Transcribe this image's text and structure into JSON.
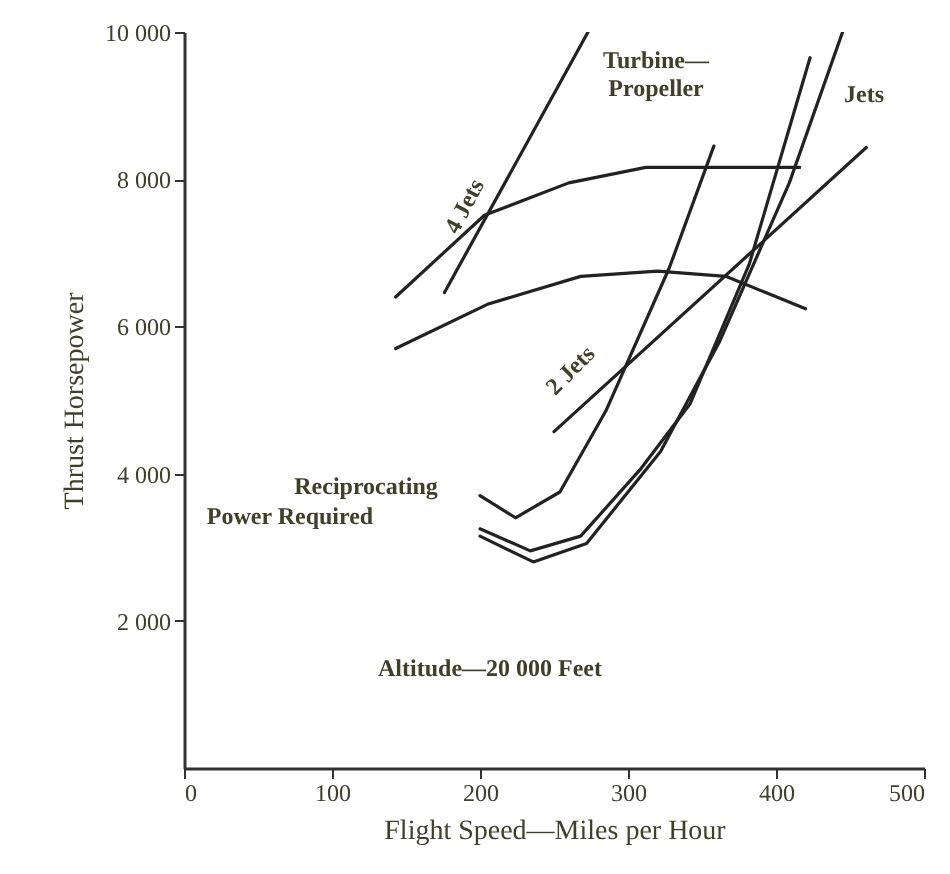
{
  "chart_data": {
    "type": "line",
    "xlabel": "Flight Speed—Miles per Hour",
    "ylabel": "Thrust Horsepower",
    "xlim": [
      0,
      500
    ],
    "ylim": [
      0,
      10000
    ],
    "xticks": [
      0,
      100,
      200,
      300,
      400,
      500
    ],
    "yticks": [
      {
        "value": 2000,
        "label": "2 000"
      },
      {
        "value": 4000,
        "label": "4 000"
      },
      {
        "value": 6000,
        "label": "6 000"
      },
      {
        "value": 8000,
        "label": "8 000"
      },
      {
        "value": 10000,
        "label": "10 000"
      }
    ],
    "grid": false,
    "legend": false,
    "marker": "none",
    "line_style": "solid",
    "series": [
      {
        "color": "#222222",
        "x": [
          176,
          273
        ],
        "values": [
          6460,
          10000
        ]
      },
      {
        "color": "#222222",
        "x": [
          143,
          203,
          260,
          312,
          416
        ],
        "values": [
          6400,
          7510,
          7950,
          8160,
          8160
        ]
      },
      {
        "color": "#222222",
        "x": [
          143,
          205,
          268,
          320,
          366,
          420
        ],
        "values": [
          5700,
          6300,
          6680,
          6750,
          6680,
          6240
        ]
      },
      {
        "color": "#222222",
        "x": [
          250,
          461
        ],
        "values": [
          4570,
          8430
        ]
      },
      {
        "color": "#222222",
        "x": [
          200,
          224,
          254,
          285,
          328,
          358
        ],
        "values": [
          3700,
          3400,
          3750,
          4850,
          6800,
          8450
        ]
      },
      {
        "color": "#222222",
        "x": [
          200,
          234,
          268,
          308,
          342,
          382,
          423
        ],
        "values": [
          3250,
          2950,
          3150,
          4050,
          4950,
          6850,
          9650
        ]
      },
      {
        "color": "#222222",
        "x": [
          200,
          236,
          272,
          322,
          362,
          409,
          445
        ],
        "values": [
          3150,
          2800,
          3050,
          4300,
          5800,
          7950,
          10000
        ]
      }
    ],
    "annotations": [
      "4 Jets",
      "Turbine—Propeller",
      "Jets",
      "Reciprocating",
      "2 Jets",
      "Power Required",
      "Altitude—20 000 Feet"
    ]
  }
}
